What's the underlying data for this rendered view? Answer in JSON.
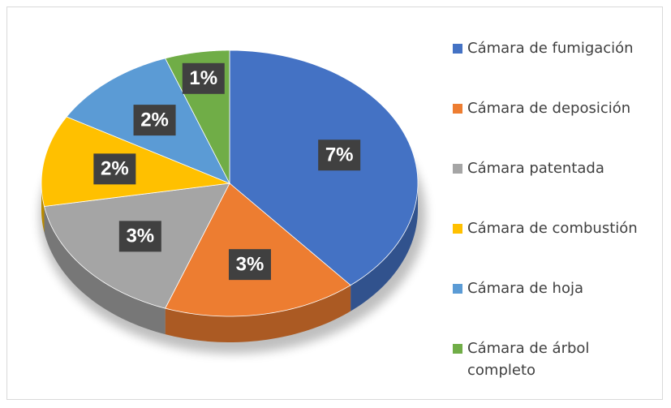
{
  "chart_data": {
    "type": "pie",
    "categories": [
      "Cámara de fumigación",
      "Cámara de deposición",
      "Cámara patentada",
      "Cámara de combustión",
      "Cámara de hoja",
      "Cámara de árbol completo"
    ],
    "values": [
      7,
      3,
      3,
      2,
      2,
      1
    ],
    "value_labels": [
      "7%",
      "3%",
      "3%",
      "2%",
      "2%",
      "1%"
    ],
    "colors": [
      "#4472c4",
      "#ed7d31",
      "#a5a5a5",
      "#ffc000",
      "#5b9bd5",
      "#70ad47"
    ],
    "legend": "right"
  }
}
